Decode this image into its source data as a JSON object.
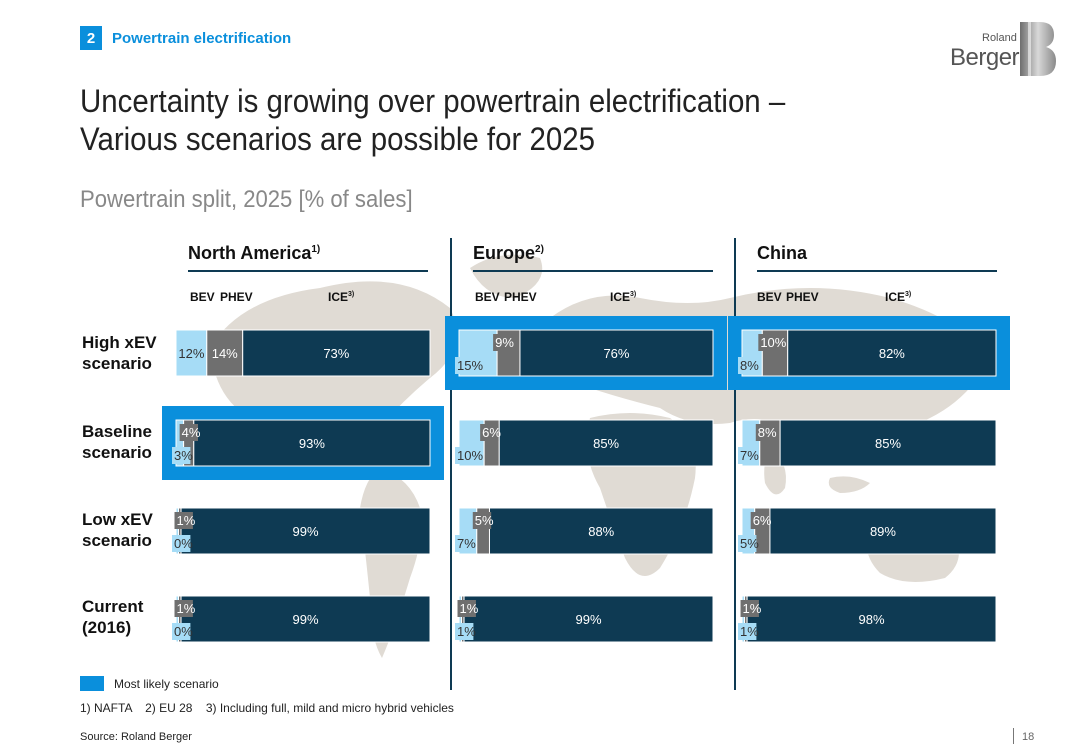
{
  "header": {
    "section_number": "2",
    "section_title": "Powertrain electrification",
    "logo_roland": "Roland",
    "logo_berger": "Berger"
  },
  "title_line1": "Uncertainty is growing over powertrain electrification –",
  "title_line2": "Various scenarios are possible for 2025",
  "subtitle": "Powertrain split, 2025 [% of sales]",
  "regions": [
    {
      "name": "North America",
      "sup": "1)"
    },
    {
      "name": "Europe",
      "sup": "2)"
    },
    {
      "name": "China",
      "sup": ""
    }
  ],
  "column_labels": {
    "bev": "BEV",
    "phev": "PHEV",
    "ice": "ICE",
    "ice_sup": "3)"
  },
  "rows": [
    {
      "line1": "High xEV",
      "line2": "scenario"
    },
    {
      "line1": "Baseline",
      "line2": "scenario"
    },
    {
      "line1": "Low xEV",
      "line2": "scenario"
    },
    {
      "line1": "Current",
      "line2": "(2016)"
    }
  ],
  "chart_data": {
    "type": "bar",
    "stacked": true,
    "orientation": "horizontal",
    "title": "Powertrain split, 2025 [% of sales]",
    "segments": [
      "BEV",
      "PHEV",
      "ICE"
    ],
    "colors": {
      "BEV": "#a6dcf6",
      "PHEV": "#6f6f6f",
      "ICE": "#0e3a53",
      "highlight": "#0a8fdc"
    },
    "panels": [
      {
        "region": "North America",
        "bars": [
          {
            "scenario": "High xEV scenario",
            "BEV": 12,
            "PHEV": 14,
            "ICE": 73,
            "labels": [
              "12%",
              "14%",
              "73%"
            ],
            "most_likely": false
          },
          {
            "scenario": "Baseline scenario",
            "BEV": 3,
            "PHEV": 4,
            "ICE": 93,
            "labels": [
              "3%",
              "4%",
              "93%"
            ],
            "most_likely": true
          },
          {
            "scenario": "Low xEV scenario",
            "BEV": 0,
            "PHEV": 1,
            "ICE": 99,
            "labels": [
              "0%",
              "1%",
              "99%"
            ],
            "most_likely": false
          },
          {
            "scenario": "Current (2016)",
            "BEV": 0,
            "PHEV": 1,
            "ICE": 99,
            "labels": [
              "0%",
              "1%",
              "99%"
            ],
            "most_likely": false
          }
        ]
      },
      {
        "region": "Europe",
        "bars": [
          {
            "scenario": "High xEV scenario",
            "BEV": 15,
            "PHEV": 9,
            "ICE": 76,
            "labels": [
              "15%",
              "9%",
              "76%"
            ],
            "most_likely": true
          },
          {
            "scenario": "Baseline scenario",
            "BEV": 10,
            "PHEV": 6,
            "ICE": 85,
            "labels": [
              "10%",
              "6%",
              "85%"
            ],
            "most_likely": false
          },
          {
            "scenario": "Low xEV scenario",
            "BEV": 7,
            "PHEV": 5,
            "ICE": 88,
            "labels": [
              "7%",
              "5%",
              "88%"
            ],
            "most_likely": false
          },
          {
            "scenario": "Current (2016)",
            "BEV": 1,
            "PHEV": 1,
            "ICE": 99,
            "labels": [
              "1%",
              "1%",
              "99%"
            ],
            "most_likely": false
          }
        ]
      },
      {
        "region": "China",
        "bars": [
          {
            "scenario": "High xEV scenario",
            "BEV": 8,
            "PHEV": 10,
            "ICE": 82,
            "labels": [
              "8%",
              "10%",
              "82%"
            ],
            "most_likely": true
          },
          {
            "scenario": "Baseline scenario",
            "BEV": 7,
            "PHEV": 8,
            "ICE": 85,
            "labels": [
              "7%",
              "8%",
              "85%"
            ],
            "most_likely": false
          },
          {
            "scenario": "Low xEV scenario",
            "BEV": 5,
            "PHEV": 6,
            "ICE": 89,
            "labels": [
              "5%",
              "6%",
              "89%"
            ],
            "most_likely": false
          },
          {
            "scenario": "Current (2016)",
            "BEV": 1,
            "PHEV": 1,
            "ICE": 98,
            "labels": [
              "1%",
              "1%",
              "98%"
            ],
            "most_likely": false
          }
        ]
      }
    ]
  },
  "legend": {
    "label": "Most likely scenario"
  },
  "footnotes": "1) NAFTA    2) EU 28    3) Including full, mild and micro hybrid vehicles",
  "source": "Source: Roland Berger",
  "page_number": "18"
}
